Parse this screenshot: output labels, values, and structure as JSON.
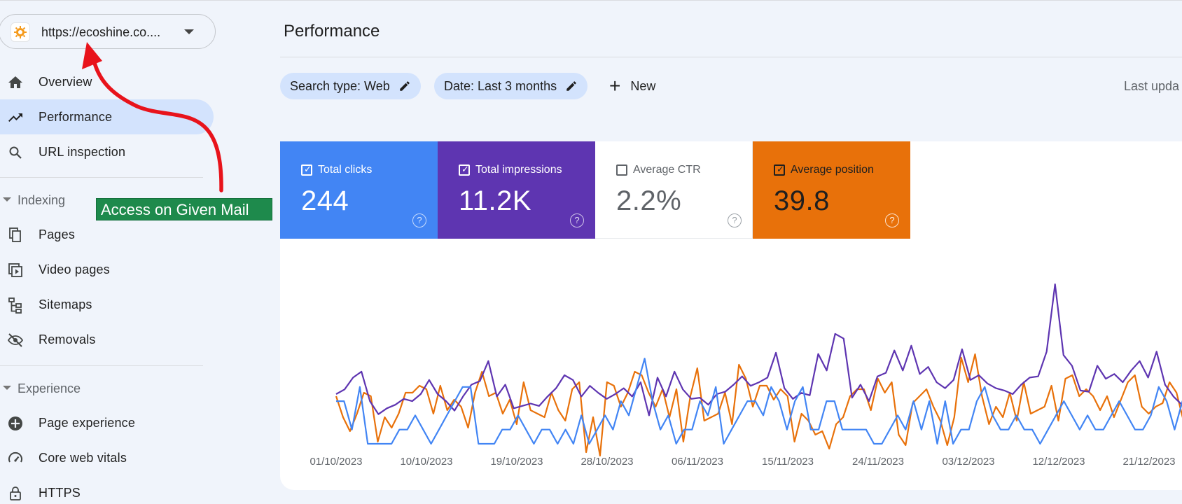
{
  "property": {
    "url": "https://ecoshine.co...."
  },
  "nav": {
    "items": [
      {
        "label": "Overview",
        "icon": "home-icon"
      },
      {
        "label": "Performance",
        "icon": "trending-up-icon",
        "active": true
      },
      {
        "label": "URL inspection",
        "icon": "search-icon"
      }
    ],
    "indexing": {
      "header": "Indexing",
      "items": [
        {
          "label": "Pages",
          "icon": "pages-icon"
        },
        {
          "label": "Video pages",
          "icon": "video-pages-icon"
        },
        {
          "label": "Sitemaps",
          "icon": "sitemap-icon"
        },
        {
          "label": "Removals",
          "icon": "visibility-off-icon"
        }
      ]
    },
    "experience": {
      "header": "Experience",
      "items": [
        {
          "label": "Page experience",
          "icon": "page-experience-icon"
        },
        {
          "label": "Core web vitals",
          "icon": "speedometer-icon"
        },
        {
          "label": "HTTPS",
          "icon": "lock-icon"
        }
      ]
    }
  },
  "annotation": {
    "label": "Access on Given Mail",
    "color": "#1e8a4c",
    "arrow_color": "#e8131b"
  },
  "main": {
    "title": "Performance",
    "chips": [
      {
        "label": "Search type: Web"
      },
      {
        "label": "Date: Last 3 months"
      }
    ],
    "new_label": "New",
    "last_updated": "Last upda"
  },
  "metrics": [
    {
      "label": "Total clicks",
      "value": "244",
      "checked": true,
      "color": "#4285f4"
    },
    {
      "label": "Total impressions",
      "value": "11.2K",
      "checked": true,
      "color": "#5e35b1"
    },
    {
      "label": "Average CTR",
      "value": "2.2%",
      "checked": false,
      "color": "#ffffff"
    },
    {
      "label": "Average position",
      "value": "39.8",
      "checked": true,
      "color": "#e8710a"
    }
  ],
  "chart_data": {
    "type": "line",
    "x_ticks": [
      "01/10/2023",
      "10/10/2023",
      "19/10/2023",
      "28/10/2023",
      "06/11/2023",
      "15/11/2023",
      "24/11/2023",
      "03/12/2023",
      "12/12/2023",
      "21/12/2023"
    ],
    "grid": false,
    "series": [
      {
        "name": "Total clicks",
        "color": "#4285f4",
        "values": [
          3,
          3,
          1,
          4,
          0,
          0,
          0,
          0,
          1,
          1,
          2,
          1,
          0,
          1,
          2,
          3,
          4,
          4,
          0,
          0,
          0,
          1,
          1,
          2,
          1,
          0,
          1,
          1,
          0,
          1,
          0,
          2,
          0,
          1,
          2,
          1,
          3,
          2,
          4,
          6,
          3,
          1,
          2,
          0,
          1,
          1,
          3,
          2,
          4,
          0,
          1,
          2,
          3,
          3,
          2,
          4,
          3,
          1,
          3,
          4,
          1,
          1,
          3,
          3,
          1,
          1,
          1,
          1,
          0,
          0,
          1,
          2,
          1,
          3,
          1,
          3,
          0,
          3,
          0,
          1,
          1,
          3,
          4,
          2,
          1,
          1,
          2,
          1,
          1,
          0,
          1,
          2,
          3,
          2,
          1,
          2,
          1,
          1,
          2,
          3,
          2,
          1,
          1,
          2,
          4,
          3,
          1,
          3,
          2
        ]
      },
      {
        "name": "Total impressions",
        "color": "#5e35b1",
        "values": [
          104,
          108,
          118,
          123,
          98,
          87,
          92,
          95,
          100,
          98,
          104,
          116,
          104,
          98,
          90,
          102,
          112,
          115,
          132,
          102,
          112,
          92,
          94,
          96,
          94,
          102,
          109,
          120,
          116,
          102,
          111,
          105,
          100,
          104,
          109,
          102,
          114,
          86,
          118,
          102,
          123,
          108,
          100,
          101,
          95,
          104,
          106,
          112,
          119,
          111,
          114,
          118,
          139,
          109,
          100,
          105,
          103,
          138,
          124,
          155,
          151,
          101,
          112,
          98,
          119,
          122,
          141,
          124,
          145,
          121,
          127,
          114,
          109,
          116,
          142,
          116,
          120,
          113,
          109,
          107,
          104,
          112,
          118,
          119,
          140,
          197,
          137,
          128,
          107,
          106,
          128,
          117,
          121,
          114,
          124,
          132,
          118,
          140,
          112,
          102,
          95,
          112
        ]
      },
      {
        "name": "Average position",
        "color": "#e8710a",
        "values": [
          44,
          38,
          34,
          39,
          45,
          44,
          31,
          38,
          35,
          39,
          45,
          45,
          47,
          46,
          39,
          47,
          40,
          43,
          41,
          35,
          45,
          51,
          44,
          45,
          39,
          43,
          36,
          48,
          40,
          39,
          38,
          45,
          40,
          37,
          46,
          48,
          28,
          38,
          27,
          48,
          47,
          41,
          45,
          51,
          50,
          45,
          41,
          46,
          38,
          46,
          31,
          44,
          52,
          37,
          38,
          39,
          45,
          36,
          53,
          49,
          41,
          47,
          47,
          43,
          46,
          44,
          31,
          39,
          37,
          33,
          34,
          29,
          36,
          38,
          44,
          46,
          46,
          40,
          49,
          45,
          48,
          33,
          30,
          42,
          44,
          46,
          41,
          37,
          30,
          38,
          55,
          48,
          56,
          44,
          36,
          41,
          38,
          45,
          37,
          48,
          39,
          40,
          41,
          47,
          37,
          49,
          50,
          44,
          46,
          44,
          40,
          44,
          38,
          43,
          48,
          50,
          41,
          39,
          41,
          42,
          48,
          45,
          37,
          42
        ]
      }
    ]
  }
}
